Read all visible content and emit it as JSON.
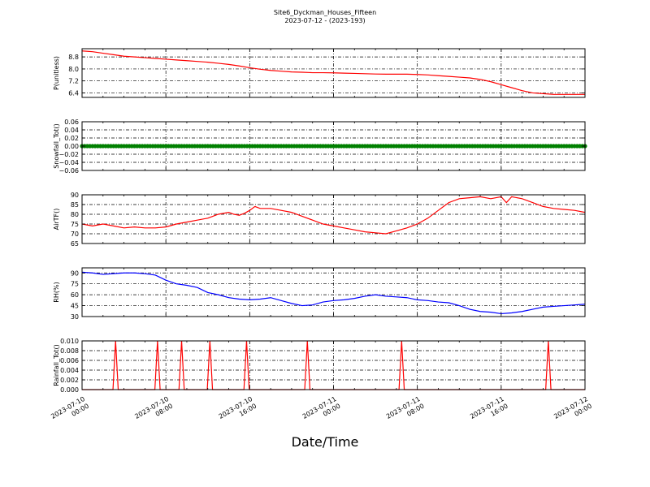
{
  "figure": {
    "title": "Site6_Dyckman_Houses_Fifteen",
    "subtitle": "2023-07-12 - (2023-193)",
    "xlabel": "Date/Time"
  },
  "chart_data": [
    {
      "type": "line",
      "ylabel": "P(unitless)",
      "color": "#ff0000",
      "ylim": [
        6.1,
        9.35
      ],
      "yticks": [
        6.4,
        7.2,
        8.0,
        8.8
      ],
      "ytick_labels": [
        "6.4",
        "7.2",
        "8.0",
        "8.8"
      ],
      "xlim": [
        0,
        48
      ],
      "grid": true,
      "x": [
        0,
        1,
        2,
        3,
        4,
        5,
        6,
        7,
        8,
        9,
        10,
        11,
        12,
        13,
        14,
        15,
        16,
        17,
        18,
        19,
        20,
        21,
        22,
        23,
        24,
        25,
        26,
        27,
        28,
        29,
        30,
        31,
        32,
        33,
        34,
        35,
        36,
        37,
        38,
        39,
        40,
        41,
        42,
        43,
        44,
        45,
        46,
        47,
        48
      ],
      "y": [
        9.2,
        9.15,
        9.05,
        8.95,
        8.85,
        8.8,
        8.75,
        8.7,
        8.65,
        8.6,
        8.55,
        8.5,
        8.45,
        8.38,
        8.3,
        8.2,
        8.08,
        7.98,
        7.9,
        7.85,
        7.8,
        7.78,
        7.75,
        7.75,
        7.74,
        7.72,
        7.7,
        7.68,
        7.66,
        7.65,
        7.65,
        7.65,
        7.63,
        7.6,
        7.55,
        7.5,
        7.45,
        7.4,
        7.3,
        7.15,
        6.95,
        6.75,
        6.55,
        6.4,
        6.35,
        6.3,
        6.3,
        6.3,
        6.3
      ]
    },
    {
      "type": "scatter",
      "ylabel": "Snowfall_Tot()",
      "color": "#008000",
      "ylim": [
        -0.06,
        0.06
      ],
      "yticks": [
        -0.06,
        -0.04,
        -0.02,
        0.0,
        0.02,
        0.04,
        0.06
      ],
      "ytick_labels": [
        "−0.06",
        "−0.04",
        "−0.02",
        "0.00",
        "0.02",
        "0.04",
        "0.06"
      ],
      "xlim": [
        0,
        48
      ],
      "grid": true,
      "x_range": [
        0,
        48
      ],
      "x_step": 0.25,
      "constant_y": 0.0
    },
    {
      "type": "line",
      "ylabel": "AirTF()",
      "color": "#ff0000",
      "ylim": [
        65,
        90
      ],
      "yticks": [
        65,
        70,
        75,
        80,
        85,
        90
      ],
      "ytick_labels": [
        "65",
        "70",
        "75",
        "80",
        "85",
        "90"
      ],
      "xlim": [
        0,
        48
      ],
      "grid": true,
      "x": [
        0,
        1,
        2,
        3,
        4,
        5,
        6,
        7,
        8,
        9,
        10,
        11,
        12,
        13,
        14,
        14.5,
        15,
        15.5,
        16,
        16.5,
        17,
        18,
        19,
        20,
        21,
        22,
        23,
        24,
        25,
        26,
        27,
        28,
        29,
        30,
        31,
        32,
        33,
        34,
        35,
        36,
        37,
        38,
        39,
        40,
        40.5,
        41,
        42,
        43,
        44,
        45,
        46,
        47,
        48
      ],
      "y": [
        75,
        74,
        75,
        74,
        73,
        73.5,
        73,
        73,
        73.5,
        75,
        76,
        77,
        78,
        80,
        81,
        80,
        79.5,
        80.5,
        82,
        84,
        83,
        83,
        82,
        81,
        79,
        77,
        75,
        74,
        73,
        72,
        71,
        70.5,
        70,
        71.5,
        73,
        75,
        78,
        82,
        86,
        88,
        88.5,
        89,
        88,
        89,
        86,
        89,
        88,
        86,
        84,
        83,
        82.5,
        82,
        81
      ]
    },
    {
      "type": "line",
      "ylabel": "RH(%)",
      "color": "#0000ff",
      "ylim": [
        30,
        97
      ],
      "yticks": [
        30,
        45,
        60,
        75,
        90
      ],
      "ytick_labels": [
        "30",
        "45",
        "60",
        "75",
        "90"
      ],
      "xlim": [
        0,
        48
      ],
      "grid": true,
      "x": [
        0,
        1,
        2,
        3,
        4,
        5,
        6,
        7,
        8,
        9,
        10,
        11,
        12,
        13,
        14,
        15,
        16,
        17,
        18,
        19,
        20,
        21,
        22,
        23,
        24,
        25,
        26,
        27,
        28,
        29,
        30,
        31,
        32,
        33,
        34,
        35,
        36,
        37,
        38,
        39,
        40,
        41,
        42,
        43,
        44,
        45,
        46,
        47,
        48
      ],
      "y": [
        91,
        90,
        88,
        89,
        90,
        90,
        89,
        87,
        80,
        75,
        73,
        70,
        63,
        60,
        56,
        54,
        53,
        54,
        56,
        52,
        48,
        45,
        46,
        50,
        52,
        53,
        55,
        58,
        60,
        58,
        57,
        56,
        53,
        52,
        50,
        49,
        45,
        40,
        37,
        36,
        34,
        35,
        37,
        40,
        43,
        44,
        45,
        46,
        47
      ]
    },
    {
      "type": "line",
      "ylabel": "Rainfall_Tot()",
      "color": "#ff0000",
      "ylim": [
        0.0,
        0.01
      ],
      "yticks": [
        0.0,
        0.002,
        0.004,
        0.006,
        0.008,
        0.01
      ],
      "ytick_labels": [
        "0.000",
        "0.002",
        "0.004",
        "0.006",
        "0.008",
        "0.010"
      ],
      "xlim": [
        0,
        48
      ],
      "grid": true,
      "spike_value": 0.01,
      "spike_x": [
        3.2,
        7.2,
        9.5,
        12.2,
        15.7,
        21.5,
        30.5,
        44.5
      ]
    }
  ],
  "xaxis": {
    "ticks": [
      0,
      8,
      16,
      24,
      32,
      40,
      48
    ],
    "tick_labels": [
      [
        "2023-07-10",
        "00:00"
      ],
      [
        "2023-07-10",
        "08:00"
      ],
      [
        "2023-07-10",
        "16:00"
      ],
      [
        "2023-07-11",
        "00:00"
      ],
      [
        "2023-07-11",
        "08:00"
      ],
      [
        "2023-07-11",
        "16:00"
      ],
      [
        "2023-07-12",
        "00:00"
      ]
    ]
  }
}
